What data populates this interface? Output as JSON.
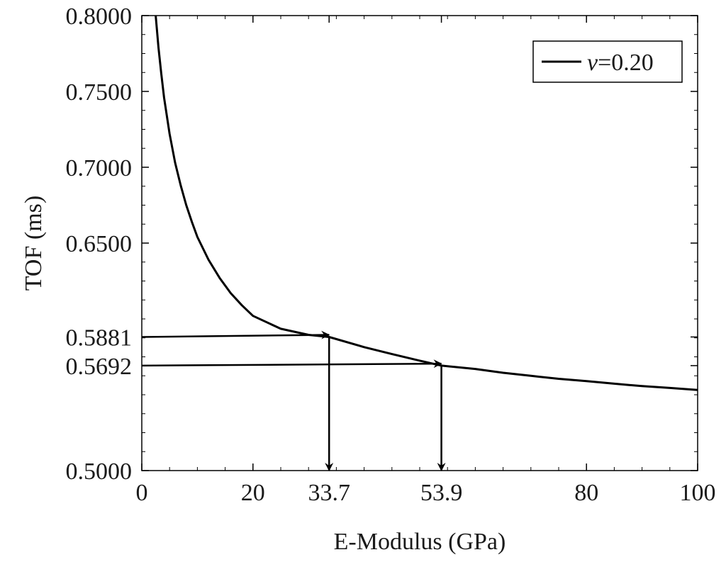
{
  "chart_data": {
    "type": "line",
    "title": "",
    "xlabel": "E-Modulus (GPa)",
    "ylabel": "TOF (ms)",
    "xlim": [
      0,
      100
    ],
    "ylim": [
      0.5,
      0.8
    ],
    "x_ticks": [
      {
        "value": 0,
        "label": "0"
      },
      {
        "value": 20,
        "label": "20"
      },
      {
        "value": 33.7,
        "label": "33.7"
      },
      {
        "value": 53.9,
        "label": "53.9"
      },
      {
        "value": 80,
        "label": "80"
      },
      {
        "value": 100,
        "label": "100"
      }
    ],
    "y_ticks": [
      {
        "value": 0.5,
        "label": "0.5000"
      },
      {
        "value": 0.5692,
        "label": "0.5692"
      },
      {
        "value": 0.5881,
        "label": "0.5881"
      },
      {
        "value": 0.65,
        "label": "0.6500"
      },
      {
        "value": 0.7,
        "label": "0.7000"
      },
      {
        "value": 0.75,
        "label": "0.7500"
      },
      {
        "value": 0.8,
        "label": "0.8000"
      }
    ],
    "x_minor_step": 5,
    "y_minor_step": 0.0125,
    "grid": false,
    "legend": {
      "placement": "top-right",
      "entries": [
        {
          "symbol": "ν",
          "text": "=0.20",
          "color": "#000000"
        }
      ]
    },
    "series": [
      {
        "color": "#000000",
        "x": [
          2.5,
          3,
          3.5,
          4,
          5,
          6,
          7,
          8,
          9,
          10,
          12,
          14,
          16,
          18,
          20,
          25,
          30,
          33.7,
          40,
          45,
          50,
          53.9,
          60,
          65,
          70,
          75,
          80,
          85,
          90,
          95,
          100
        ],
        "y": [
          0.8,
          0.779,
          0.762,
          0.746,
          0.722,
          0.703,
          0.688,
          0.675,
          0.664,
          0.654,
          0.639,
          0.627,
          0.617,
          0.609,
          0.602,
          0.5935,
          0.5895,
          0.5881,
          0.5814,
          0.5768,
          0.5725,
          0.5692,
          0.567,
          0.5645,
          0.5625,
          0.5605,
          0.559,
          0.5573,
          0.5557,
          0.5545,
          0.5532
        ]
      }
    ],
    "annotations": [
      {
        "type": "arrow",
        "from": [
          0,
          0.5881
        ],
        "to": [
          33.7,
          0.5895
        ]
      },
      {
        "type": "arrow",
        "from": [
          33.7,
          0.5881
        ],
        "to": [
          33.7,
          0.5
        ]
      },
      {
        "type": "arrow",
        "from": [
          0,
          0.5692
        ],
        "to": [
          53.9,
          0.5705
        ]
      },
      {
        "type": "arrow",
        "from": [
          53.9,
          0.5692
        ],
        "to": [
          53.9,
          0.5
        ]
      }
    ]
  }
}
